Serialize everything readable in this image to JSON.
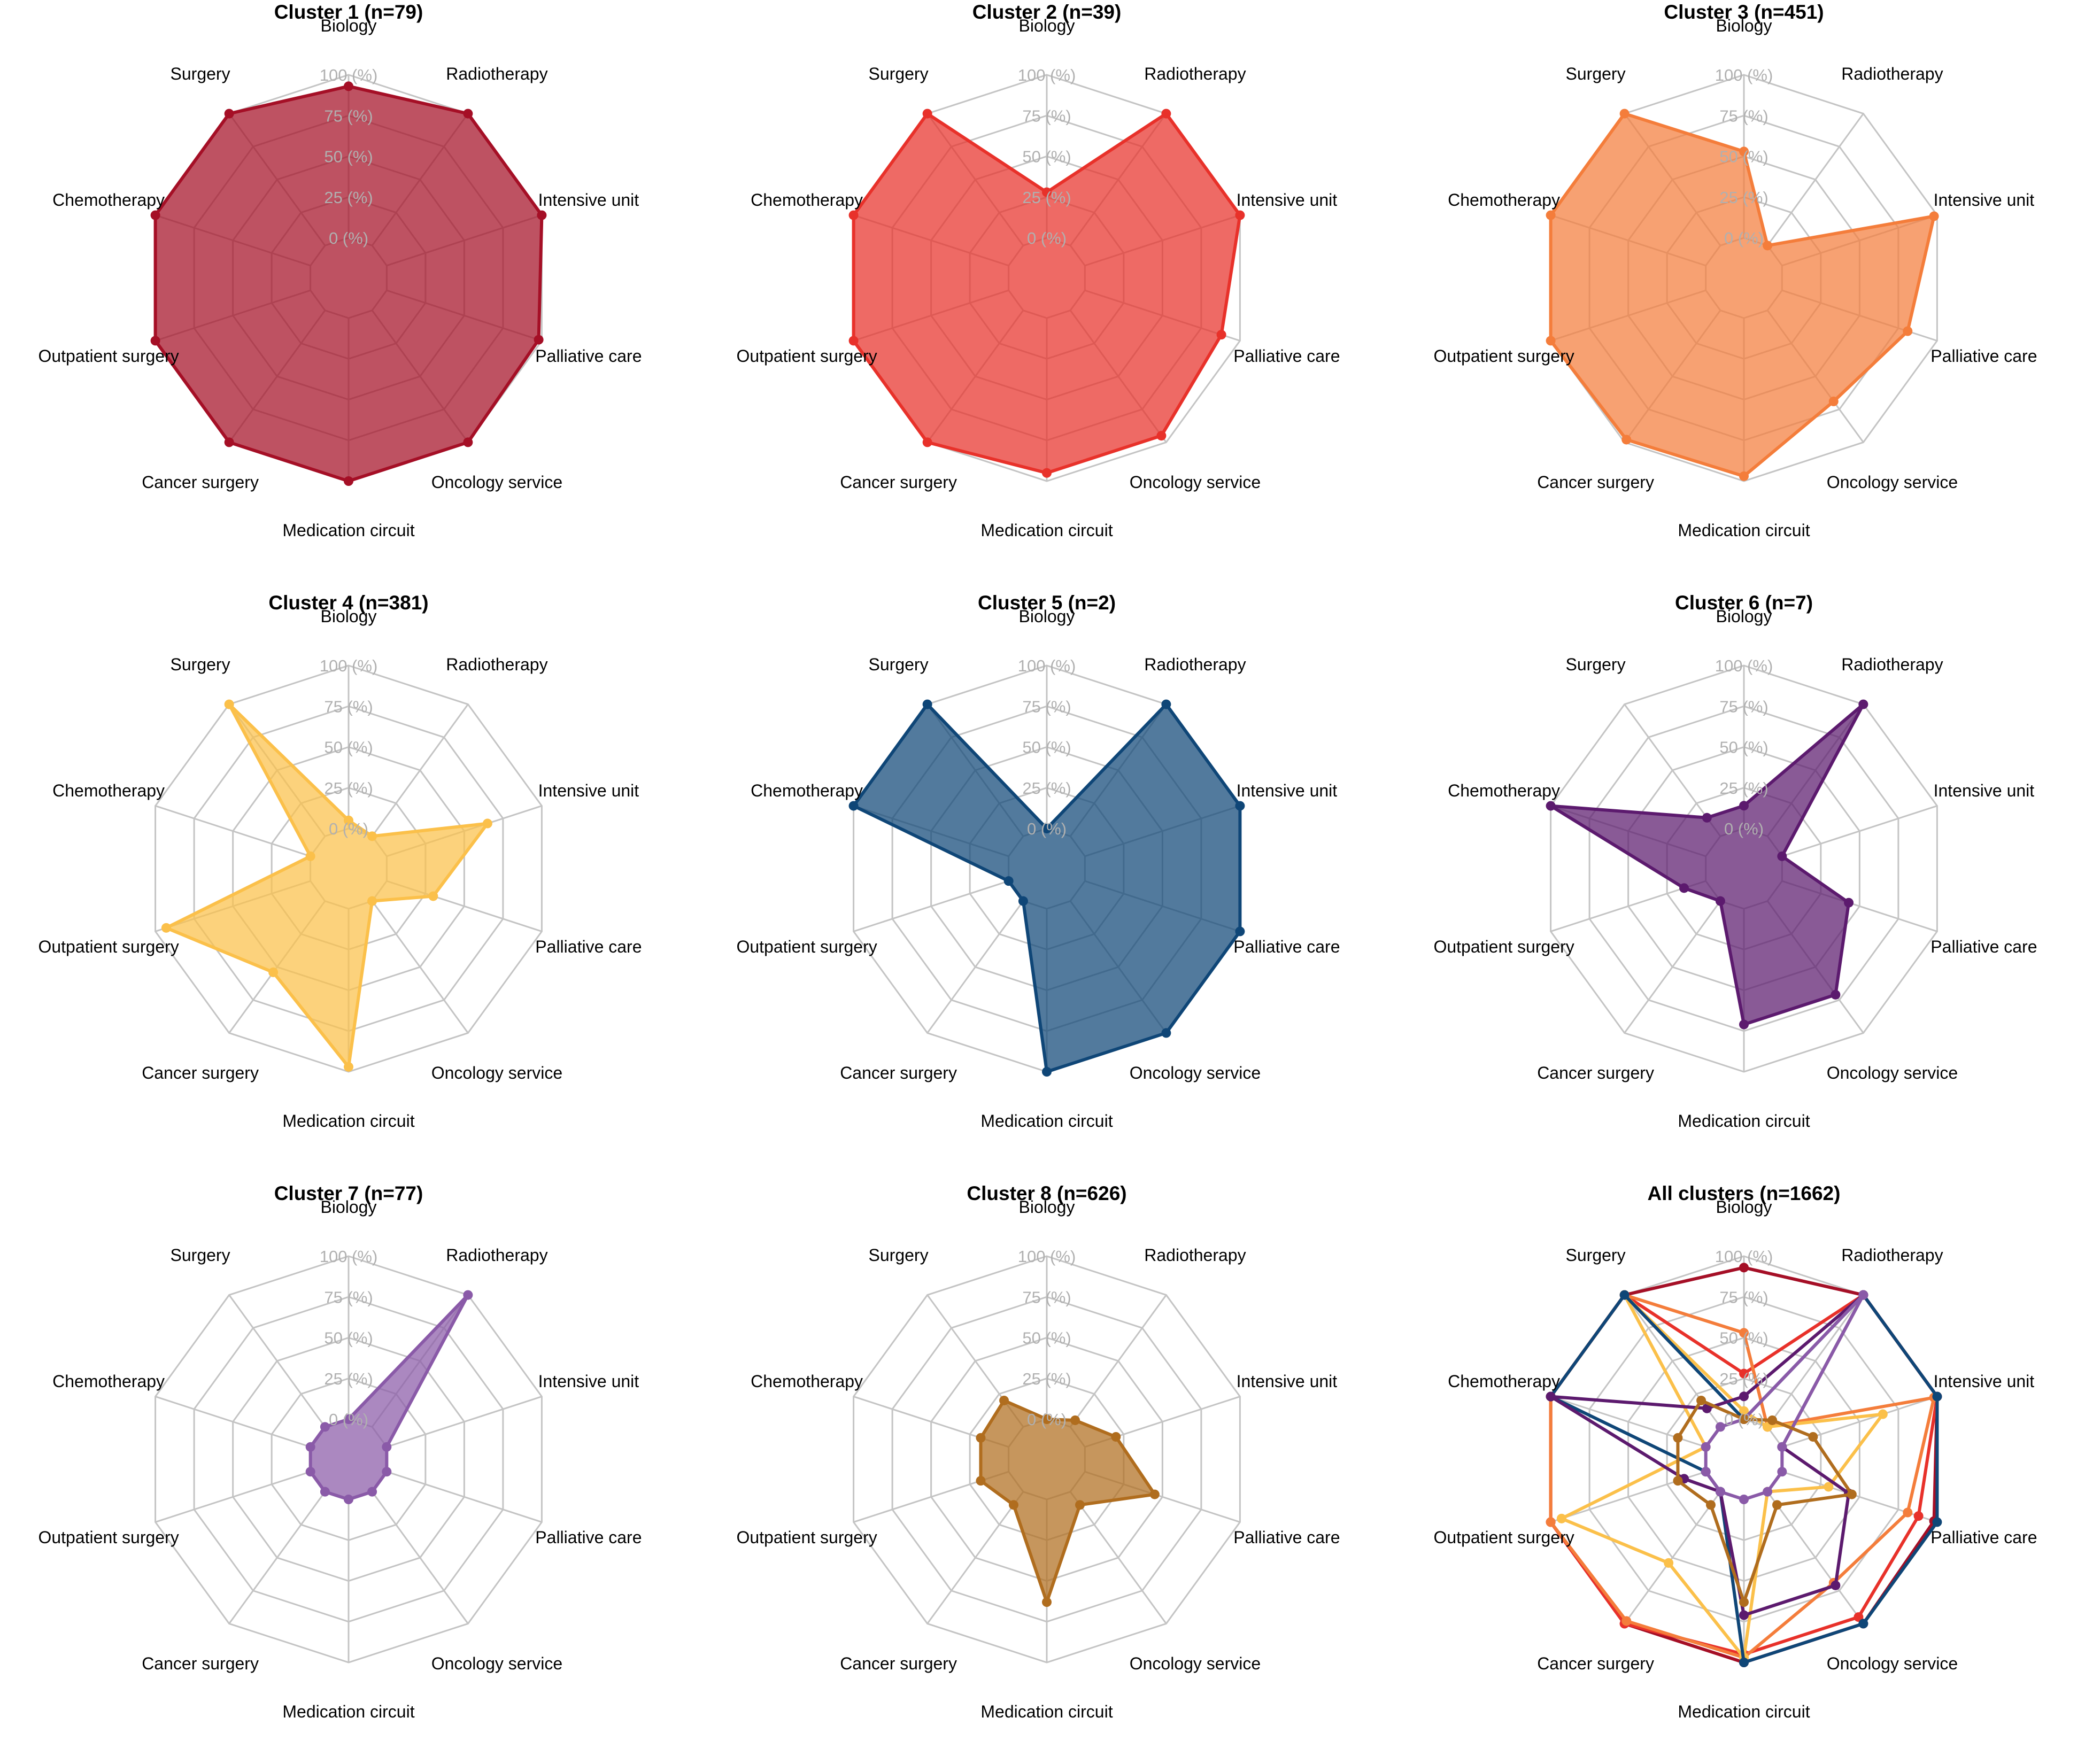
{
  "chart_data": [
    {
      "type": "radar",
      "title": "Cluster 1 (n=79)",
      "axes": [
        "Biology",
        "Radiotherapy",
        "Intensive unit",
        "Palliative care",
        "Oncology service",
        "Medication circuit",
        "Cancer surgery",
        "Outpatient surgery",
        "Chemotherapy",
        "Surgery"
      ],
      "tick_labels": [
        "0 (%)",
        "25 (%)",
        "50 (%)",
        "75 (%)",
        "100 (%)"
      ],
      "rlim": [
        0,
        100
      ],
      "color": "#a50f26",
      "filled": true,
      "values": [
        93,
        100,
        100,
        98,
        100,
        100,
        100,
        100,
        100,
        100
      ]
    },
    {
      "type": "radar",
      "title": "Cluster 2 (n=39)",
      "axes": [
        "Biology",
        "Radiotherapy",
        "Intensive unit",
        "Palliative care",
        "Oncology service",
        "Medication circuit",
        "Cancer surgery",
        "Outpatient surgery",
        "Chemotherapy",
        "Surgery"
      ],
      "tick_labels": [
        "0 (%)",
        "25 (%)",
        "50 (%)",
        "75 (%)",
        "100 (%)"
      ],
      "rlim": [
        0,
        100
      ],
      "color": "#e8312a",
      "filled": true,
      "values": [
        28,
        100,
        100,
        88,
        95,
        95,
        100,
        100,
        100,
        100
      ]
    },
    {
      "type": "radar",
      "title": "Cluster 3 (n=451)",
      "axes": [
        "Biology",
        "Radiotherapy",
        "Intensive unit",
        "Palliative care",
        "Oncology service",
        "Medication circuit",
        "Cancer surgery",
        "Outpatient surgery",
        "Chemotherapy",
        "Surgery"
      ],
      "tick_labels": [
        "0 (%)",
        "25 (%)",
        "50 (%)",
        "75 (%)",
        "100 (%)"
      ],
      "rlim": [
        0,
        100
      ],
      "color": "#f47d3b",
      "filled": true,
      "values": [
        53,
        0,
        98,
        81,
        69,
        97,
        98,
        100,
        100,
        100
      ]
    },
    {
      "type": "radar",
      "title": "Cluster 4 (n=381)",
      "axes": [
        "Biology",
        "Radiotherapy",
        "Intensive unit",
        "Palliative care",
        "Oncology service",
        "Medication circuit",
        "Cancer surgery",
        "Outpatient surgery",
        "Chemotherapy",
        "Surgery"
      ],
      "tick_labels": [
        "0 (%)",
        "25 (%)",
        "50 (%)",
        "75 (%)",
        "100 (%)"
      ],
      "rlim": [
        0,
        100
      ],
      "color": "#fbc04a",
      "filled": true,
      "values": [
        5,
        0,
        65,
        30,
        0,
        97,
        54,
        93,
        0,
        100
      ]
    },
    {
      "type": "radar",
      "title": "Cluster 5 (n=2)",
      "axes": [
        "Biology",
        "Radiotherapy",
        "Intensive unit",
        "Palliative care",
        "Oncology service",
        "Medication circuit",
        "Cancer surgery",
        "Outpatient surgery",
        "Chemotherapy",
        "Surgery"
      ],
      "tick_labels": [
        "0 (%)",
        "25 (%)",
        "50 (%)",
        "75 (%)",
        "100 (%)"
      ],
      "rlim": [
        0,
        100
      ],
      "color": "#0f4677",
      "filled": true,
      "values": [
        0,
        100,
        100,
        100,
        100,
        100,
        0,
        0,
        100,
        100
      ]
    },
    {
      "type": "radar",
      "title": "Cluster 6 (n=7)",
      "axes": [
        "Biology",
        "Radiotherapy",
        "Intensive unit",
        "Palliative care",
        "Oncology service",
        "Medication circuit",
        "Cancer surgery",
        "Outpatient surgery",
        "Chemotherapy",
        "Surgery"
      ],
      "tick_labels": [
        "0 (%)",
        "25 (%)",
        "50 (%)",
        "75 (%)",
        "100 (%)"
      ],
      "rlim": [
        0,
        100
      ],
      "color": "#5c1a6e",
      "filled": true,
      "values": [
        14,
        100,
        0,
        43,
        71,
        71,
        0,
        14,
        100,
        14
      ]
    },
    {
      "type": "radar",
      "title": "Cluster 7 (n=77)",
      "axes": [
        "Biology",
        "Radiotherapy",
        "Intensive unit",
        "Palliative care",
        "Oncology service",
        "Medication circuit",
        "Cancer surgery",
        "Outpatient surgery",
        "Chemotherapy",
        "Surgery"
      ],
      "tick_labels": [
        "0 (%)",
        "25 (%)",
        "50 (%)",
        "75 (%)",
        "100 (%)"
      ],
      "rlim": [
        0,
        100
      ],
      "color": "#8a5aa8",
      "filled": true,
      "values": [
        0,
        100,
        0,
        0,
        0,
        0,
        0,
        0,
        0,
        0
      ]
    },
    {
      "type": "radar",
      "title": "Cluster 8 (n=626)",
      "axes": [
        "Biology",
        "Radiotherapy",
        "Intensive unit",
        "Palliative care",
        "Oncology service",
        "Medication circuit",
        "Cancer surgery",
        "Outpatient surgery",
        "Chemotherapy",
        "Surgery"
      ],
      "tick_labels": [
        "0 (%)",
        "25 (%)",
        "50 (%)",
        "75 (%)",
        "100 (%)"
      ],
      "rlim": [
        0,
        100
      ],
      "color": "#b06d1e",
      "filled": true,
      "values": [
        0,
        5,
        20,
        45,
        10,
        63,
        10,
        18,
        18,
        20
      ]
    },
    {
      "type": "radar",
      "title": "All clusters (n=1662)",
      "axes": [
        "Biology",
        "Radiotherapy",
        "Intensive unit",
        "Palliative care",
        "Oncology service",
        "Medication circuit",
        "Cancer surgery",
        "Outpatient surgery",
        "Chemotherapy",
        "Surgery"
      ],
      "tick_labels": [
        "0 (%)",
        "25 (%)",
        "50 (%)",
        "75 (%)",
        "100 (%)"
      ],
      "rlim": [
        0,
        100
      ],
      "filled": false,
      "series": [
        {
          "color": "#a50f26",
          "values": [
            93,
            100,
            100,
            98,
            100,
            100,
            100,
            100,
            100,
            100
          ]
        },
        {
          "color": "#e8312a",
          "values": [
            28,
            100,
            100,
            88,
            95,
            95,
            100,
            100,
            100,
            100
          ]
        },
        {
          "color": "#f47d3b",
          "values": [
            53,
            0,
            98,
            81,
            69,
            97,
            98,
            100,
            100,
            100
          ]
        },
        {
          "color": "#fbc04a",
          "values": [
            5,
            0,
            65,
            30,
            0,
            97,
            54,
            93,
            0,
            100
          ]
        },
        {
          "color": "#0f4677",
          "values": [
            0,
            100,
            100,
            100,
            100,
            100,
            0,
            0,
            100,
            100
          ]
        },
        {
          "color": "#5c1a6e",
          "values": [
            14,
            100,
            0,
            43,
            71,
            71,
            0,
            14,
            100,
            14
          ]
        },
        {
          "color": "#8a5aa8",
          "values": [
            0,
            100,
            0,
            0,
            0,
            0,
            0,
            0,
            0,
            0
          ]
        },
        {
          "color": "#b06d1e",
          "values": [
            0,
            5,
            20,
            45,
            10,
            63,
            10,
            18,
            18,
            20
          ]
        }
      ]
    }
  ]
}
